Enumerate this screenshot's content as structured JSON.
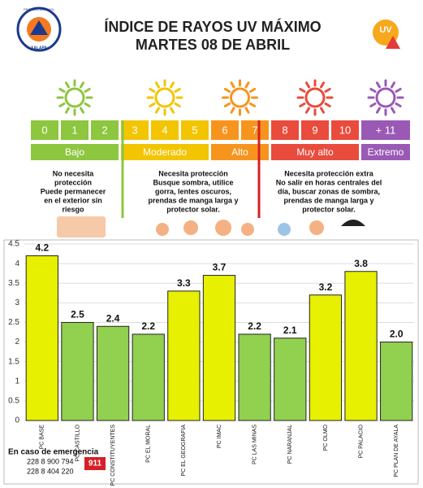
{
  "header": {
    "title": "ÍNDICE DE RAYOS UV MÁXIMO",
    "subtitle": "MARTES 08 DE ABRIL",
    "logo_text": "PROTECCIÓN CIVIL",
    "logo_city": "XALAPA",
    "uv_badge": "UV"
  },
  "uv_scale": [
    {
      "name": "Bajo",
      "color": "#8dc63f",
      "levels": [
        "0",
        "1",
        "2"
      ]
    },
    {
      "name": "Moderado",
      "color": "#f2c500",
      "levels": [
        "3",
        "4",
        "5"
      ]
    },
    {
      "name": "Alto",
      "color": "#f7941d",
      "levels": [
        "6",
        "7"
      ]
    },
    {
      "name": "Muy alto",
      "color": "#e94b3c",
      "levels": [
        "8",
        "9",
        "10"
      ]
    },
    {
      "name": "Extremo",
      "color": "#9b59b6",
      "levels": [
        "+ 11"
      ]
    }
  ],
  "descriptions": [
    [
      "No necesita",
      "protección",
      "Puede permanecer",
      "en el exterior sin",
      "riesgo"
    ],
    [
      "Necesita protección",
      "Busque sombra, utilice",
      "gorra, lentes oscuros,",
      "prendas de manga larga y",
      "protector solar."
    ],
    [
      "Necesita protección extra",
      "No salir en horas centrales del",
      "día, buscar zonas de sombra,",
      "prendas de manga larga y",
      "protector solar."
    ]
  ],
  "emergency": {
    "title": "En caso de emergencia",
    "phones": [
      "228 8 900 794",
      "228 8 404 220"
    ],
    "badge": "911"
  },
  "chart_data": {
    "type": "bar",
    "categories": [
      "PC BASE",
      "PC CASTILLO",
      "PC CONSTITUYENTES",
      "PC EL MORAL",
      "PC EL GEOGRAFIA",
      "PC IMAC",
      "PC LAS MINAS",
      "PC NARANJAL",
      "PC OLMO",
      "PC PALACIO",
      "PC PLAN DE AYALA"
    ],
    "values": [
      4.2,
      2.5,
      2.4,
      2.2,
      3.3,
      3.7,
      2.2,
      2.1,
      3.2,
      3.8,
      2.0
    ],
    "value_labels": [
      "4.2",
      "2.5",
      "2.4",
      "2.2",
      "3.3",
      "3.7",
      "2.2",
      "2.1",
      "3.2",
      "3.8",
      "2.0"
    ],
    "colors": [
      "#e6f000",
      "#92d050",
      "#92d050",
      "#92d050",
      "#e6f000",
      "#e6f000",
      "#92d050",
      "#92d050",
      "#e6f000",
      "#e6f000",
      "#92d050"
    ],
    "ylim": [
      0,
      4.5
    ],
    "yticks": [
      0,
      0.5,
      1,
      1.5,
      2,
      2.5,
      3,
      3.5,
      4,
      4.5
    ],
    "grid": true
  }
}
